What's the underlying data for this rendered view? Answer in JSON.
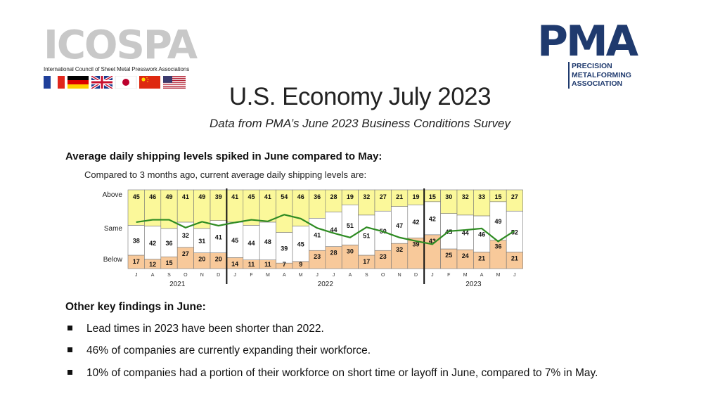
{
  "icospa": {
    "name": "ICOSPA",
    "subtitle": "International Council of Sheet Metal Presswork Associations",
    "flags": [
      "france-flag",
      "germany-flag",
      "uk-flag",
      "japan-flag",
      "china-flag",
      "usa-flag"
    ]
  },
  "pma": {
    "name": "PMA",
    "full_name": [
      "PRECISION",
      "METALFORMING",
      "ASSOCIATION"
    ]
  },
  "page": {
    "title": "U.S. Economy July 2023",
    "subtitle": "Data from PMA’s June 2023 Business Conditions Survey",
    "chart_heading": "Average daily shipping levels spiked in June compared to May:",
    "chart_caption": "Compared to 3 months ago, current average daily shipping levels are:"
  },
  "findings": {
    "heading": "Other key findings in June:",
    "bullets": [
      "Lead times in 2023 have been shorter than 2022.",
      "46% of companies are currently expanding their workforce.",
      "10% of companies had a portion of their workforce on short time or layoff in June, compared to 7% in May."
    ]
  },
  "colors": {
    "above": "#fbf89a",
    "same": "#ffffff",
    "below": "#f8c99a",
    "line": "#2e8b22",
    "pma_blue": "#1f3a6e"
  },
  "chart_data": {
    "type": "bar",
    "stacked": true,
    "title": "Compared to 3 months ago, current average daily shipping levels are:",
    "row_labels": [
      "Above",
      "Same",
      "Below"
    ],
    "months": [
      "J",
      "A",
      "S",
      "O",
      "N",
      "D",
      "J",
      "F",
      "M",
      "A",
      "M",
      "J",
      "J",
      "A",
      "S",
      "O",
      "N",
      "D",
      "J",
      "F",
      "M",
      "A",
      "M",
      "J"
    ],
    "years": [
      {
        "label": "2021",
        "start": 0,
        "end": 5
      },
      {
        "label": "2022",
        "start": 6,
        "end": 17
      },
      {
        "label": "2023",
        "start": 18,
        "end": 23
      }
    ],
    "series": [
      {
        "name": "Above",
        "values": [
          45,
          46,
          49,
          41,
          49,
          39,
          41,
          45,
          41,
          54,
          46,
          36,
          28,
          19,
          32,
          27,
          21,
          19,
          15,
          30,
          32,
          33,
          15,
          27
        ]
      },
      {
        "name": "Same",
        "values": [
          38,
          42,
          36,
          32,
          31,
          41,
          45,
          44,
          48,
          39,
          45,
          41,
          44,
          51,
          51,
          50,
          47,
          42,
          42,
          45,
          44,
          46,
          49,
          52
        ]
      },
      {
        "name": "Below",
        "values": [
          17,
          12,
          15,
          27,
          20,
          20,
          14,
          11,
          11,
          7,
          9,
          23,
          28,
          30,
          17,
          23,
          32,
          39,
          43,
          25,
          24,
          21,
          36,
          21
        ]
      }
    ],
    "trend_line": "Above minus Below (net index)",
    "ylim": [
      0,
      100
    ]
  }
}
